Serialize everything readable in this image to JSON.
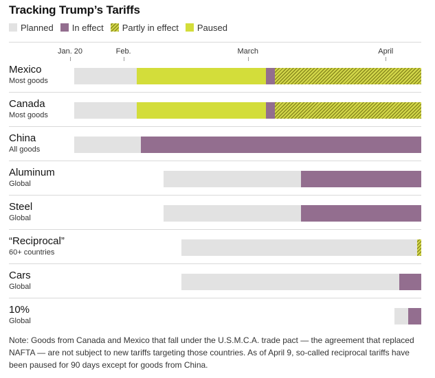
{
  "chart_data": {
    "type": "bar",
    "title": "Tracking Trump’s Tariffs",
    "legend": [
      {
        "key": "planned",
        "label": "Planned",
        "color": "#e2e2e2"
      },
      {
        "key": "in_effect",
        "label": "In effect",
        "color": "#936e8f"
      },
      {
        "key": "partly",
        "label": "Partly in effect",
        "color": "#c9c93d"
      },
      {
        "key": "paused",
        "label": "Paused",
        "color": "#d3dd3a"
      }
    ],
    "x_unit": "day of 2025",
    "x_range": [
      20,
      99
    ],
    "x_ticks": [
      {
        "label": "Jan. 20",
        "day": 20
      },
      {
        "label": "Feb.",
        "day": 32
      },
      {
        "label": "March",
        "day": 60
      },
      {
        "label": "April",
        "day": 91
      }
    ],
    "rows": [
      {
        "name": "Mexico",
        "sub": "Most goods",
        "segments": [
          {
            "status": "planned",
            "start": 21,
            "end": 35
          },
          {
            "status": "paused",
            "start": 35,
            "end": 64
          },
          {
            "status": "in_effect",
            "start": 64,
            "end": 66
          },
          {
            "status": "partly",
            "start": 66,
            "end": 99
          }
        ]
      },
      {
        "name": "Canada",
        "sub": "Most goods",
        "segments": [
          {
            "status": "planned",
            "start": 21,
            "end": 35
          },
          {
            "status": "paused",
            "start": 35,
            "end": 64
          },
          {
            "status": "in_effect",
            "start": 64,
            "end": 66
          },
          {
            "status": "partly",
            "start": 66,
            "end": 99
          }
        ]
      },
      {
        "name": "China",
        "sub": "All goods",
        "segments": [
          {
            "status": "planned",
            "start": 21,
            "end": 36
          },
          {
            "status": "in_effect",
            "start": 36,
            "end": 99
          }
        ]
      },
      {
        "name": "Aluminum",
        "sub": "Global",
        "segments": [
          {
            "status": "planned",
            "start": 41,
            "end": 72
          },
          {
            "status": "in_effect",
            "start": 72,
            "end": 99
          }
        ]
      },
      {
        "name": "Steel",
        "sub": "Global",
        "segments": [
          {
            "status": "planned",
            "start": 41,
            "end": 72
          },
          {
            "status": "in_effect",
            "start": 72,
            "end": 99
          }
        ]
      },
      {
        "name": "“Reciprocal”",
        "sub": "60+ countries",
        "segments": [
          {
            "status": "planned",
            "start": 45,
            "end": 98
          },
          {
            "status": "partly",
            "start": 98,
            "end": 99
          }
        ]
      },
      {
        "name": "Cars",
        "sub": "Global",
        "segments": [
          {
            "status": "planned",
            "start": 45,
            "end": 94
          },
          {
            "status": "in_effect",
            "start": 94,
            "end": 99
          }
        ]
      },
      {
        "name": "10%",
        "sub": "Global",
        "segments": [
          {
            "status": "planned",
            "start": 93,
            "end": 96
          },
          {
            "status": "in_effect",
            "start": 96,
            "end": 99
          }
        ]
      }
    ],
    "note": "Note: Goods from Canada and Mexico that fall under the U.S.M.C.A. trade pact — the agreement that replaced NAFTA — are not subject to new tariffs targeting those countries. As of April 9, so-called reciprocal tariffs have been paused for 90 days except for goods from China."
  }
}
